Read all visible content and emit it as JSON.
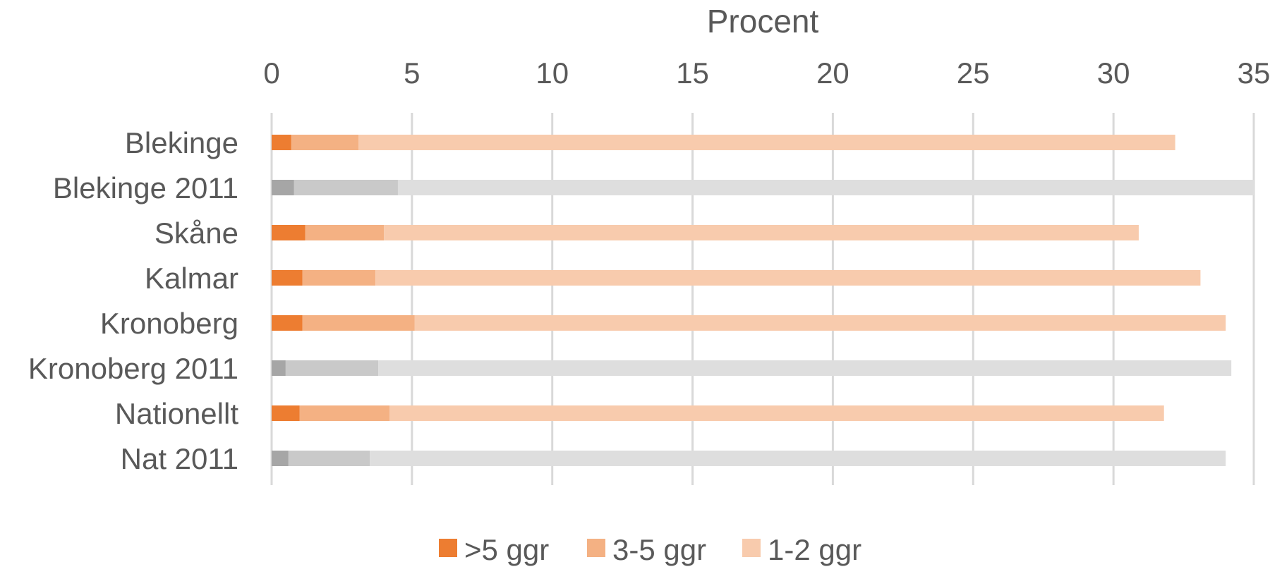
{
  "chart_data": {
    "type": "bar",
    "orientation": "horizontal",
    "stacked": true,
    "title": "",
    "xlabel": "Procent",
    "ylabel": "",
    "xlim": [
      0,
      35
    ],
    "xticks": [
      "0",
      "5",
      "10",
      "15",
      "20",
      "25",
      "30",
      "35"
    ],
    "categories": [
      "Blekinge",
      "Blekinge 2011",
      "Skåne",
      "Kalmar",
      "Kronoberg",
      "Kronoberg 2011",
      "Nationellt",
      "Nat 2011"
    ],
    "series": [
      {
        "name": ">5 ggr",
        "values": [
          0.7,
          0.8,
          1.2,
          1.1,
          1.1,
          0.5,
          1.0,
          0.6
        ]
      },
      {
        "name": "3-5 ggr",
        "values": [
          2.4,
          3.7,
          2.8,
          2.6,
          4.0,
          3.3,
          3.2,
          2.9
        ]
      },
      {
        "name": "1-2 ggr",
        "values": [
          29.1,
          30.5,
          26.9,
          29.4,
          28.9,
          30.4,
          27.6,
          30.5
        ]
      }
    ],
    "colors": {
      "current": [
        "#ed7d31",
        "#f4b183",
        "#f8cbad"
      ],
      "y2011": [
        "#a6a6a6",
        "#c9c9c9",
        "#dedede"
      ]
    },
    "highlight_2011_categories": [
      "Blekinge 2011",
      "Kronoberg 2011",
      "Nat 2011"
    ],
    "grid": true,
    "legend_position": "bottom"
  }
}
